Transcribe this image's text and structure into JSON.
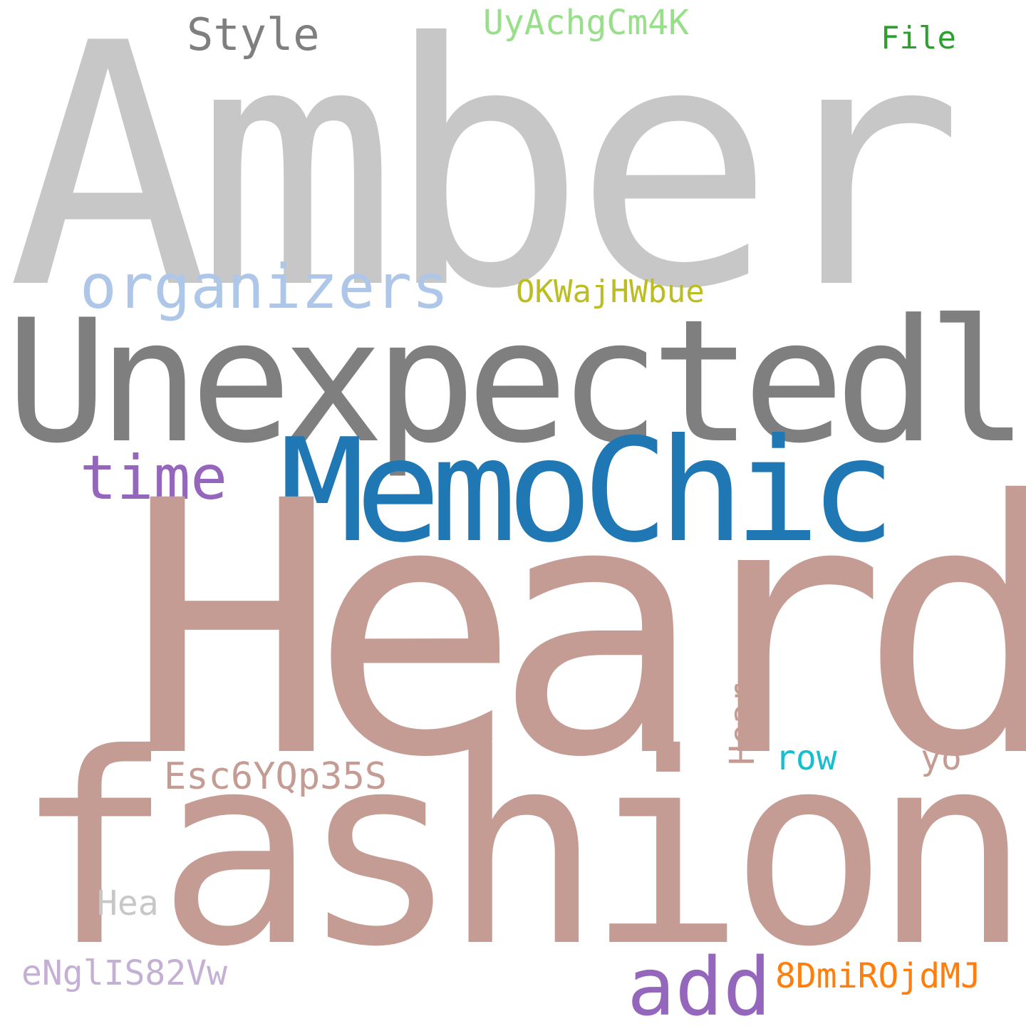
{
  "words": {
    "amber": {
      "text": "Amber",
      "color": "#c7c7c7"
    },
    "style": {
      "text": "Style",
      "color": "#7f7f7f"
    },
    "uyachgcm4k": {
      "text": "UyAchgCm4K",
      "color": "#98df8a"
    },
    "file": {
      "text": "File",
      "color": "#2ca02c"
    },
    "organizers": {
      "text": "organizers",
      "color": "#aec7e8"
    },
    "okwajhwbue": {
      "text": "OKWajHWbue",
      "color": "#bcbd22"
    },
    "unexpectedly": {
      "text": "Unexpectedly",
      "color": "#7f7f7f"
    },
    "time": {
      "text": "time",
      "color": "#9467bd"
    },
    "memochic": {
      "text": "MemoChic",
      "color": "#1f77b4"
    },
    "heard": {
      "text": "Heard",
      "color": "#c49c94"
    },
    "hear": {
      "text": "Hear",
      "color": "#c49c94"
    },
    "row": {
      "text": "row",
      "color": "#17becf"
    },
    "yo": {
      "text": "yo",
      "color": "#c49c94"
    },
    "esc6yqp35s": {
      "text": "Esc6YQp35S",
      "color": "#c49c94"
    },
    "fashion": {
      "text": "fashion",
      "color": "#c49c94"
    },
    "hea": {
      "text": "Hea",
      "color": "#c7c7c7"
    },
    "engliss82vw": {
      "text": "eNglIS82Vw",
      "color": "#c5b0d5"
    },
    "add": {
      "text": "add",
      "color": "#9467bd"
    },
    "8dmirojdmj": {
      "text": "8DmiROjdMJ",
      "color": "#ff7f0e"
    }
  }
}
